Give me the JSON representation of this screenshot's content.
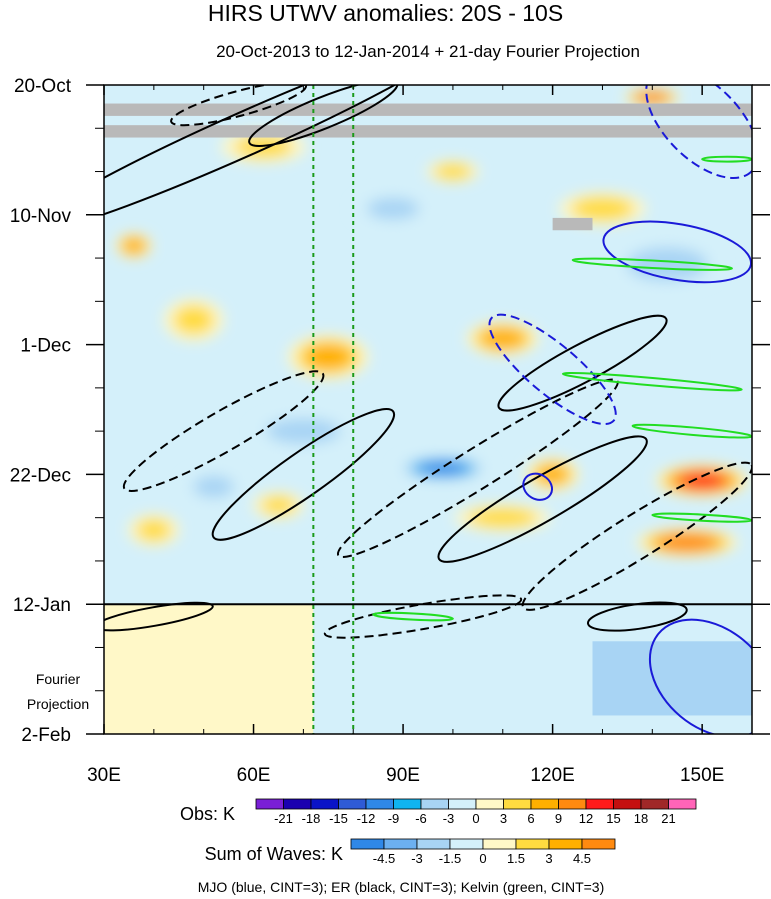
{
  "chart_data": {
    "type": "heatmap",
    "title": "HIRS UTWV anomalies: 20S - 10S",
    "subtitle": "20-Oct-2013 to 12-Jan-2014 + 21-day Fourier Projection",
    "x_axis": {
      "units": "degrees east longitude",
      "range": [
        30,
        160
      ],
      "ticks": [
        {
          "value": 30,
          "label": "30E"
        },
        {
          "value": 60,
          "label": "60E"
        },
        {
          "value": 90,
          "label": "90E"
        },
        {
          "value": 120,
          "label": "120E"
        },
        {
          "value": 150,
          "label": "150E"
        }
      ]
    },
    "y_axis": {
      "units": "days since 20-Oct-2013 (downward)",
      "range": [
        0,
        105
      ],
      "ticks": [
        {
          "value": 0,
          "label": "20-Oct"
        },
        {
          "value": 21,
          "label": "10-Nov"
        },
        {
          "value": 42,
          "label": "1-Dec"
        },
        {
          "value": 63,
          "label": "22-Dec"
        },
        {
          "value": 84,
          "label": "12-Jan"
        },
        {
          "value": 105,
          "label": "2-Feb"
        }
      ]
    },
    "projection_boundary": {
      "value": 84,
      "label": "12-Jan"
    },
    "projection_label": [
      "Fourier",
      "Projection"
    ],
    "reference_lines": [
      72,
      80
    ],
    "obs_colorbar": {
      "label": "Obs: K",
      "levels": [
        -21,
        -18,
        -15,
        -12,
        -9,
        -6,
        -3,
        0,
        3,
        6,
        9,
        12,
        15,
        18,
        21
      ],
      "colors": [
        "#7a1fd6",
        "#1a00b0",
        "#0a14c8",
        "#2f5bd6",
        "#2f88e8",
        "#10b4f0",
        "#a8d4f4",
        "#d4f0fa",
        "#fff8c8",
        "#ffdb40",
        "#ffb000",
        "#ff8a10",
        "#ff1a1a",
        "#c41010",
        "#a02828",
        "#ff64b8"
      ]
    },
    "waves_colorbar": {
      "label": "Sum of Waves: K",
      "levels": [
        -4.5,
        -3,
        -1.5,
        0,
        1.5,
        3,
        4.5
      ],
      "colors": [
        "#2f88e8",
        "#6cb0f0",
        "#a8d4f4",
        "#d4f0fa",
        "#fff8c8",
        "#ffdb40",
        "#ffb000",
        "#ff8a10"
      ]
    },
    "footnote": "MJO (blue, CINT=3); ER (black, CINT=3); Kelvin (green, CINT=3)",
    "anomaly_features": [
      {
        "lon": 36,
        "day": 26,
        "rx": 4,
        "ry": 2.2,
        "value": 10
      },
      {
        "lon": 48,
        "day": 38,
        "rx": 7,
        "ry": 4,
        "value": 5
      },
      {
        "lon": 62,
        "day": 10,
        "rx": 10,
        "ry": 3,
        "value": 5
      },
      {
        "lon": 75,
        "day": 44,
        "rx": 9,
        "ry": 4,
        "value": 8
      },
      {
        "lon": 70,
        "day": 56,
        "rx": 11,
        "ry": 3,
        "value": -7
      },
      {
        "lon": 65,
        "day": 68,
        "rx": 6,
        "ry": 2.5,
        "value": 5
      },
      {
        "lon": 98,
        "day": 62,
        "rx": 10,
        "ry": 2.2,
        "value": -11
      },
      {
        "lon": 110,
        "day": 41,
        "rx": 8,
        "ry": 3,
        "value": 9
      },
      {
        "lon": 120,
        "day": 63,
        "rx": 6,
        "ry": 3,
        "value": 8
      },
      {
        "lon": 110,
        "day": 70,
        "rx": 11,
        "ry": 2.5,
        "value": 6
      },
      {
        "lon": 150,
        "day": 64,
        "rx": 10,
        "ry": 2.8,
        "value": 14
      },
      {
        "lon": 147,
        "day": 74,
        "rx": 11,
        "ry": 2.5,
        "value": 12
      },
      {
        "lon": 143,
        "day": 29,
        "rx": 12,
        "ry": 4,
        "value": -7
      },
      {
        "lon": 140,
        "day": 2,
        "rx": 6,
        "ry": 1.5,
        "value": 13
      },
      {
        "lon": 88,
        "day": 20,
        "rx": 9,
        "ry": 3,
        "value": -5
      },
      {
        "lon": 130,
        "day": 20,
        "rx": 10,
        "ry": 3,
        "value": 6
      },
      {
        "lon": 52,
        "day": 65,
        "rx": 7,
        "ry": 3,
        "value": -5
      },
      {
        "lon": 40,
        "day": 72,
        "rx": 6,
        "ry": 3,
        "value": 5
      },
      {
        "lon": 85,
        "day": 76,
        "rx": 10,
        "ry": 3,
        "value": -4
      },
      {
        "lon": 100,
        "day": 14,
        "rx": 6,
        "ry": 2,
        "value": 6
      }
    ],
    "missing_data": [
      {
        "lon": [
          30,
          160
        ],
        "day": [
          3,
          5
        ]
      },
      {
        "lon": [
          30,
          160
        ],
        "day": [
          6.5,
          8.5
        ]
      },
      {
        "lon": [
          120,
          128
        ],
        "day": [
          21.5,
          23.5
        ]
      }
    ],
    "projection_fill": [
      {
        "lon": [
          30,
          72
        ],
        "day": [
          84,
          105
        ],
        "value": 1
      },
      {
        "lon": [
          72,
          160
        ],
        "day": [
          84,
          105
        ],
        "value": -1
      },
      {
        "lon": [
          128,
          160
        ],
        "day": [
          90,
          102
        ],
        "value": -3
      }
    ],
    "wave_contours": [
      {
        "wave": "ER",
        "sign": "positive",
        "lon": 74,
        "day": 4.5,
        "rx": 16,
        "ry": 2.5,
        "tilt": -22
      },
      {
        "wave": "ER",
        "sign": "positive",
        "lon": 58,
        "day": 8,
        "rx": 48,
        "ry": 3.5,
        "tilt": -24
      },
      {
        "wave": "ER",
        "sign": "negative",
        "lon": 57,
        "day": 3,
        "rx": 14,
        "ry": 2,
        "tilt": -15
      },
      {
        "wave": "ER",
        "sign": "negative",
        "lon": 54,
        "day": 56,
        "rx": 23,
        "ry": 3.2,
        "tilt": -30
      },
      {
        "wave": "ER",
        "sign": "positive",
        "lon": 70,
        "day": 63,
        "rx": 22,
        "ry": 3.5,
        "tilt": -35
      },
      {
        "wave": "ER",
        "sign": "negative",
        "lon": 105,
        "day": 62,
        "rx": 33,
        "ry": 3.2,
        "tilt": -32
      },
      {
        "wave": "ER",
        "sign": "positive",
        "lon": 126,
        "day": 45,
        "rx": 19,
        "ry": 3,
        "tilt": -28
      },
      {
        "wave": "ER",
        "sign": "positive",
        "lon": 118,
        "day": 67,
        "rx": 24,
        "ry": 3.5,
        "tilt": -30
      },
      {
        "wave": "ER",
        "sign": "negative",
        "lon": 137,
        "day": 73,
        "rx": 27,
        "ry": 3.5,
        "tilt": -32
      },
      {
        "wave": "ER",
        "sign": "negative",
        "lon": 94,
        "day": 86,
        "rx": 20,
        "ry": 2,
        "tilt": -10
      },
      {
        "wave": "ER",
        "sign": "positive",
        "lon": 137,
        "day": 86,
        "rx": 10,
        "ry": 2,
        "tilt": -8
      },
      {
        "wave": "ER",
        "sign": "positive",
        "lon": 40,
        "day": 86,
        "rx": 12,
        "ry": 1.5,
        "tilt": -10
      },
      {
        "wave": "MJO",
        "sign": "positive",
        "lon": 145,
        "day": 27,
        "rx": 15,
        "ry": 4.5,
        "tilt": 10
      },
      {
        "wave": "MJO",
        "sign": "negative",
        "lon": 120,
        "day": 46,
        "rx": 16,
        "ry": 4,
        "tilt": 40
      },
      {
        "wave": "MJO",
        "sign": "positive",
        "lon": 117,
        "day": 65,
        "rx": 3,
        "ry": 2,
        "tilt": 30
      },
      {
        "wave": "MJO",
        "sign": "negative",
        "lon": 150,
        "day": 6,
        "rx": 14,
        "ry": 6,
        "tilt": 45
      },
      {
        "wave": "MJO",
        "sign": "positive",
        "lon": 152,
        "day": 96,
        "rx": 14,
        "ry": 8,
        "tilt": 40
      },
      {
        "wave": "Kelvin",
        "sign": "positive",
        "lon": 140,
        "day": 29,
        "rx": 16,
        "ry": 0.6,
        "tilt": 3
      },
      {
        "wave": "Kelvin",
        "sign": "positive",
        "lon": 140,
        "day": 48,
        "rx": 18,
        "ry": 0.6,
        "tilt": 5
      },
      {
        "wave": "Kelvin",
        "sign": "positive",
        "lon": 148,
        "day": 56,
        "rx": 12,
        "ry": 0.6,
        "tilt": 5
      },
      {
        "wave": "Kelvin",
        "sign": "positive",
        "lon": 150,
        "day": 70,
        "rx": 10,
        "ry": 0.5,
        "tilt": 3
      },
      {
        "wave": "Kelvin",
        "sign": "positive",
        "lon": 92,
        "day": 86,
        "rx": 8,
        "ry": 0.5,
        "tilt": 3
      },
      {
        "wave": "Kelvin",
        "sign": "positive",
        "lon": 155,
        "day": 12,
        "rx": 5,
        "ry": 0.4,
        "tilt": 0
      }
    ]
  }
}
